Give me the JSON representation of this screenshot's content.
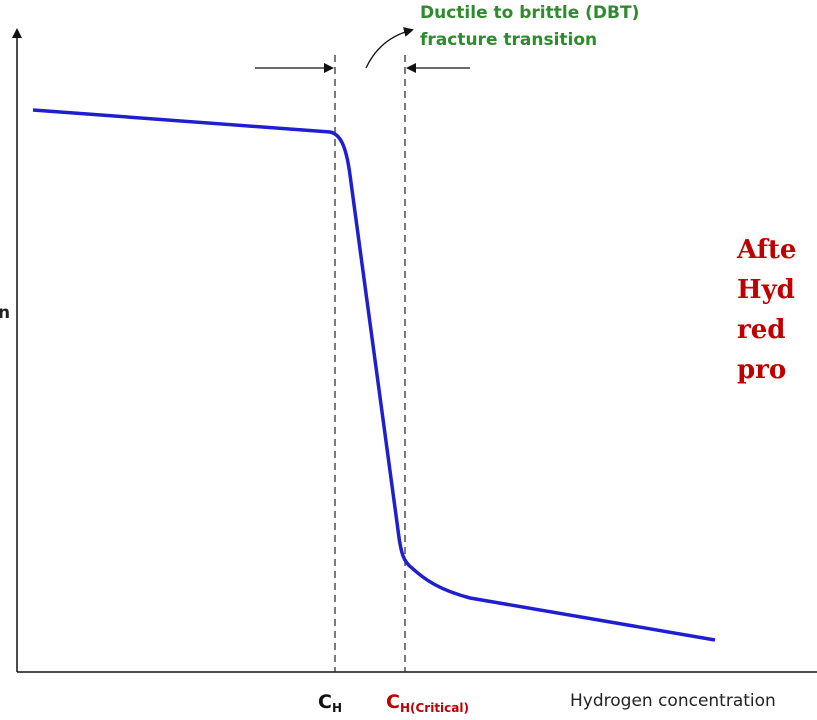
{
  "annotation": {
    "line1": "Ductile to brittle (DBT)",
    "line2": "fracture transition"
  },
  "y_label": "n",
  "side_note": [
    "Afte",
    "Hyd",
    "red",
    "pro"
  ],
  "x_labels": {
    "c_h": {
      "main": "C",
      "sub": "H"
    },
    "c_h_critical": {
      "main": "C",
      "sub": "H(Critical)"
    },
    "axis_title": "Hydrogen concentration"
  }
}
